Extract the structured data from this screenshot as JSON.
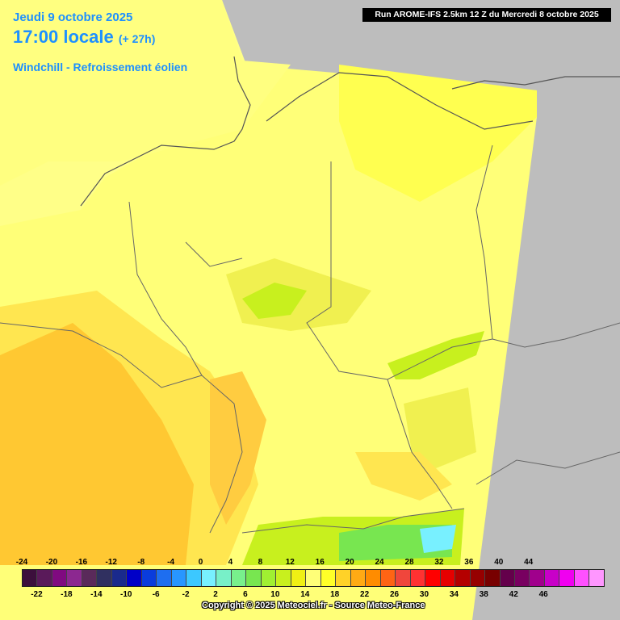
{
  "header": {
    "date": "Jeudi 9 octobre 2025",
    "time": "17:00 locale",
    "offset": "(+ 27h)",
    "parameter": "Windchill - Refroissement éolien"
  },
  "run_info": "Run AROME-IFS 2.5km 12 Z du Mercredi 8 octobre 2025",
  "copyright": "Copyright © 2025 Meteociel.fr - Source Meteo-France",
  "legend": {
    "top_labels": [
      "-24",
      "-20",
      "-16",
      "-12",
      "-8",
      "-4",
      "0",
      "4",
      "8",
      "12",
      "16",
      "20",
      "24",
      "28",
      "32",
      "36",
      "40",
      "44"
    ],
    "bottom_labels": [
      "-22",
      "-18",
      "-14",
      "-10",
      "-6",
      "-2",
      "2",
      "6",
      "10",
      "14",
      "18",
      "22",
      "26",
      "30",
      "34",
      "38",
      "42",
      "46"
    ],
    "colors": [
      "#3c0f3c",
      "#5a1a5a",
      "#800a80",
      "#8c2890",
      "#5a2a5a",
      "#303060",
      "#1a2a8c",
      "#0000c8",
      "#0a3cdc",
      "#1e6ef0",
      "#2896ff",
      "#3cc8ff",
      "#78f0ff",
      "#78f0c8",
      "#78f08c",
      "#78e650",
      "#a0f032",
      "#c8f01e",
      "#f0f014",
      "#ffff78",
      "#ffff28",
      "#ffd228",
      "#ffaa14",
      "#ff8c00",
      "#ff6414",
      "#f0463c",
      "#ff3232",
      "#ff0000",
      "#e60000",
      "#b40000",
      "#960000",
      "#780000",
      "#64004b",
      "#780060",
      "#a0008c",
      "#c800c8",
      "#f000f0",
      "#ff50ff",
      "#ff96ff"
    ]
  },
  "colors": {
    "outside_domain": "#bdbdbd",
    "base_yellow": "#ffff78",
    "warm_yellow": "#ffe650",
    "orange": "#ffc832",
    "yellow_green": "#f0f050",
    "green": "#78e650"
  }
}
